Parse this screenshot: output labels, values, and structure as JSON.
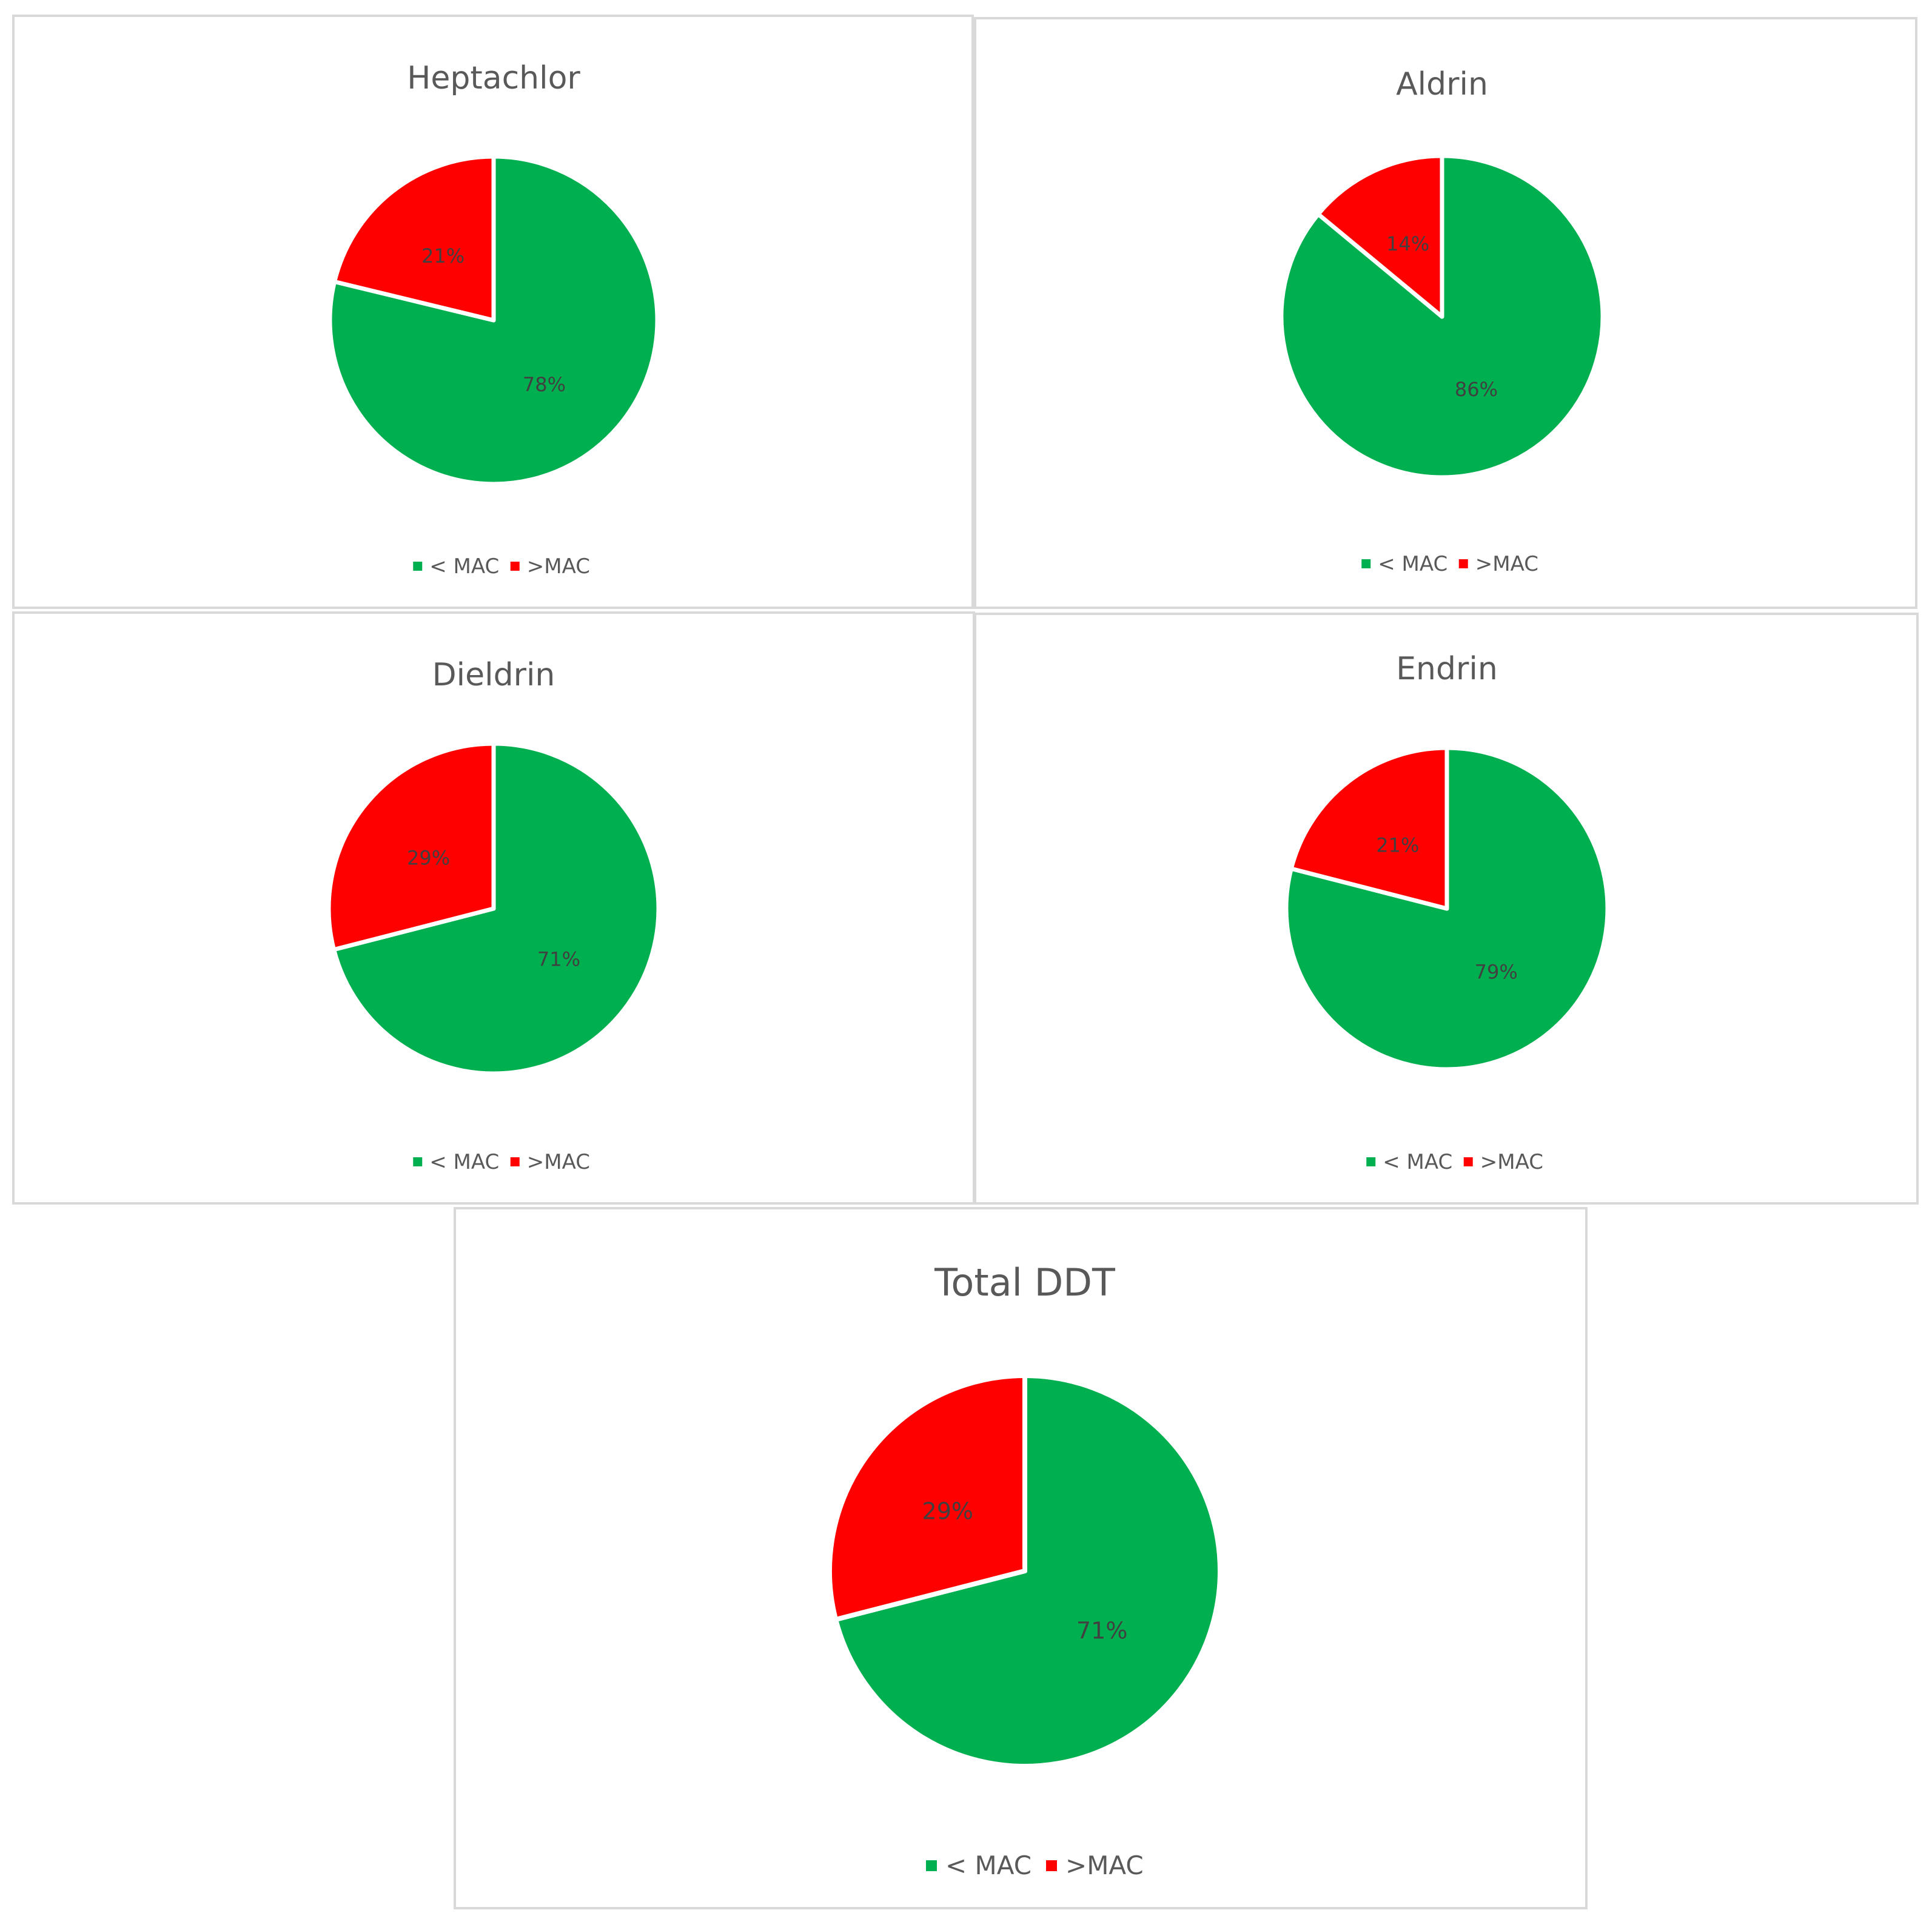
{
  "colors": {
    "below_mac": "#00b050",
    "above_mac": "#ff0000"
  },
  "chart_data": [
    {
      "type": "pie",
      "title": "Heptachlor",
      "slices": [
        {
          "label": "< MAC",
          "value": 78,
          "display": "78%"
        },
        {
          "label": ">MAC",
          "value": 21,
          "display": "21%"
        }
      ],
      "legend": [
        "< MAC",
        ">MAC"
      ],
      "legend_position": "bottom"
    },
    {
      "type": "pie",
      "title": "Aldrin",
      "slices": [
        {
          "label": "< MAC",
          "value": 86,
          "display": "86%"
        },
        {
          "label": ">MAC",
          "value": 14,
          "display": "14%"
        }
      ],
      "legend": [
        "< MAC",
        ">MAC"
      ],
      "legend_position": "bottom"
    },
    {
      "type": "pie",
      "title": "Dieldrin",
      "slices": [
        {
          "label": "< MAC",
          "value": 71,
          "display": "71%"
        },
        {
          "label": ">MAC",
          "value": 29,
          "display": "29%"
        }
      ],
      "legend": [
        "< MAC",
        ">MAC"
      ],
      "legend_position": "bottom"
    },
    {
      "type": "pie",
      "title": "Endrin",
      "slices": [
        {
          "label": "< MAC",
          "value": 79,
          "display": "79%"
        },
        {
          "label": ">MAC",
          "value": 21,
          "display": "21%"
        }
      ],
      "legend": [
        "< MAC",
        ">MAC"
      ],
      "legend_position": "bottom"
    },
    {
      "type": "pie",
      "title": "Total DDT",
      "slices": [
        {
          "label": "< MAC",
          "value": 71,
          "display": "71%"
        },
        {
          "label": ">MAC",
          "value": 29,
          "display": "29%"
        }
      ],
      "legend": [
        "< MAC",
        ">MAC"
      ],
      "legend_position": "bottom"
    }
  ]
}
